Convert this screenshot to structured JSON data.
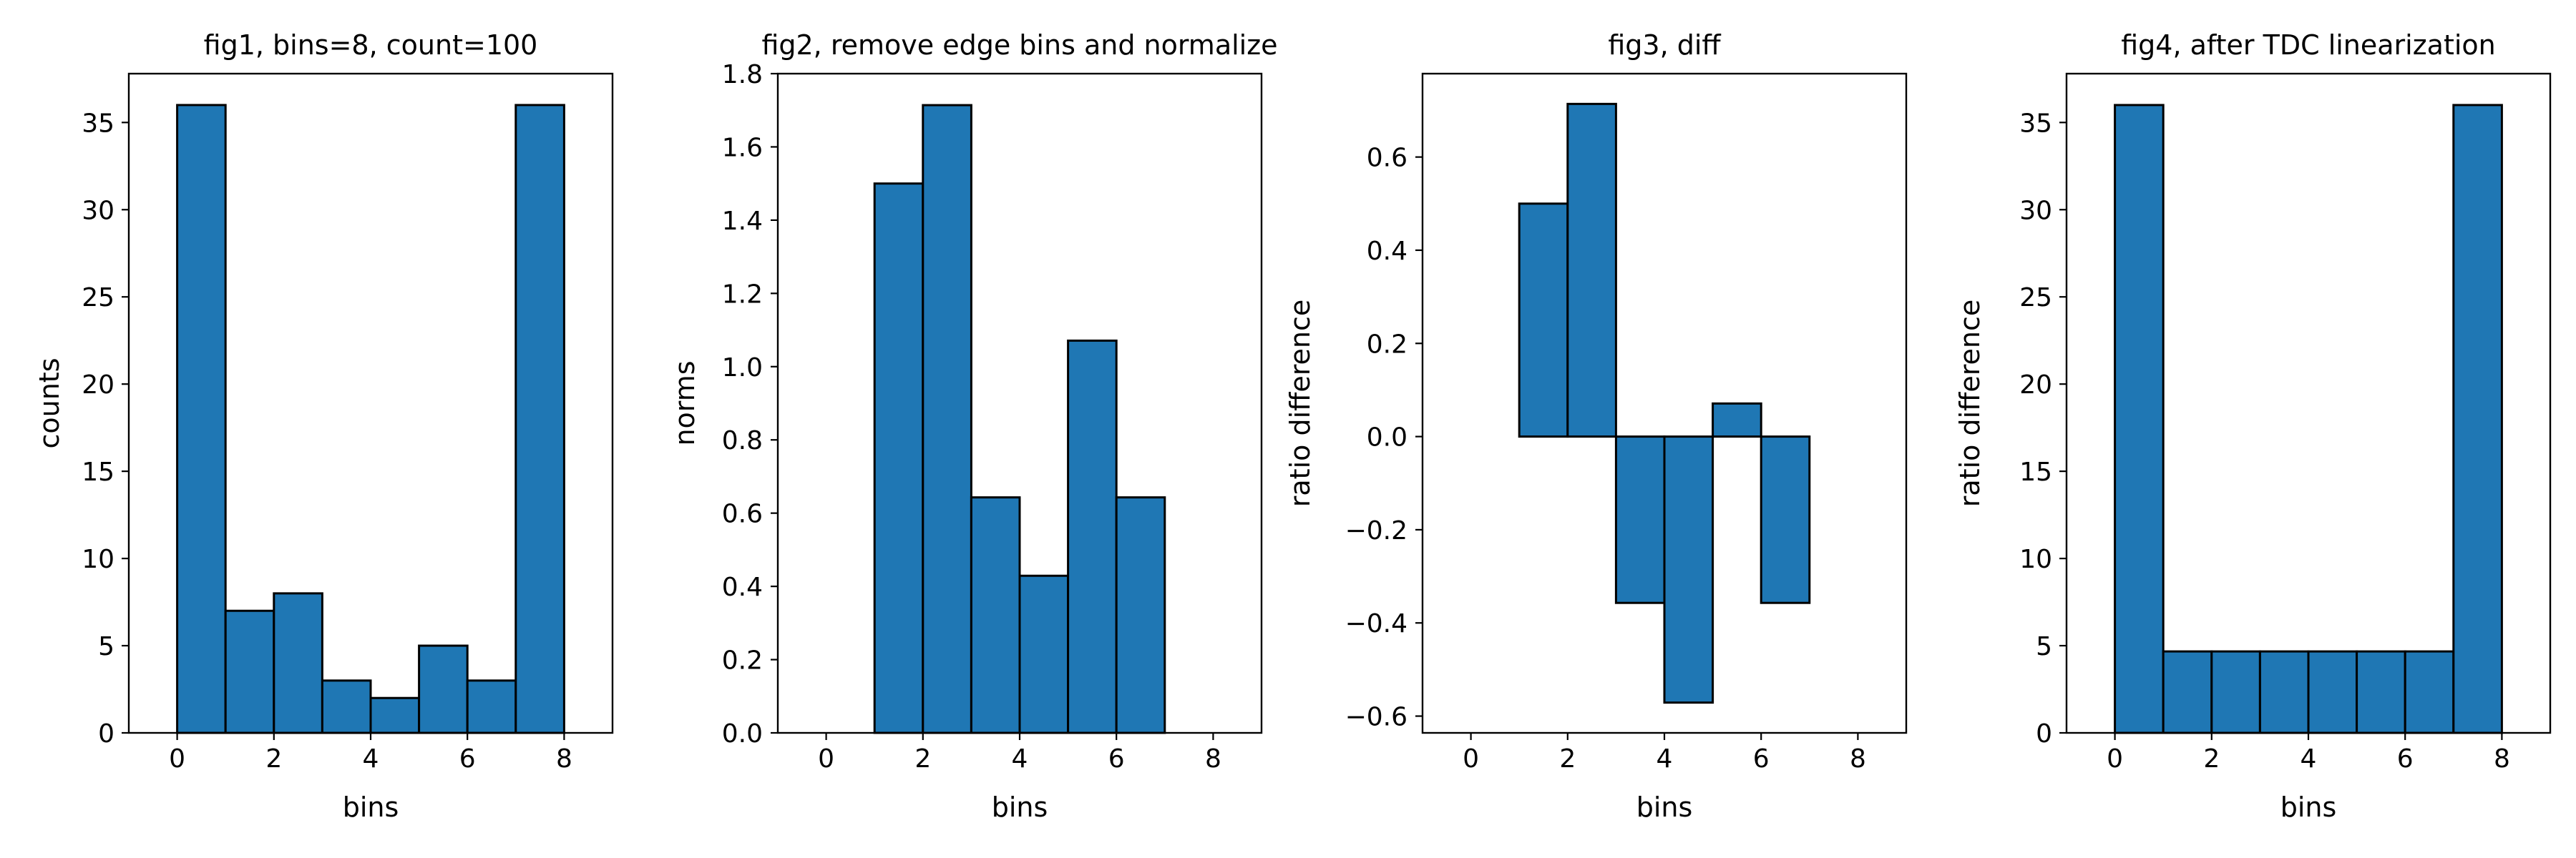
{
  "chart_data": [
    {
      "type": "bar",
      "title": "fig1, bins=8, count=100",
      "xlabel": "bins",
      "ylabel": "counts",
      "xlim": [
        -1,
        9
      ],
      "ylim": [
        0,
        37.8
      ],
      "xticks": [
        0,
        2,
        4,
        6,
        8
      ],
      "yticks": [
        0,
        5,
        10,
        15,
        20,
        25,
        30,
        35
      ],
      "bins": [
        {
          "x0": 0,
          "x1": 1,
          "value": 36
        },
        {
          "x0": 1,
          "x1": 2,
          "value": 7
        },
        {
          "x0": 2,
          "x1": 3,
          "value": 8
        },
        {
          "x0": 3,
          "x1": 4,
          "value": 3
        },
        {
          "x0": 4,
          "x1": 5,
          "value": 2
        },
        {
          "x0": 5,
          "x1": 6,
          "value": 5
        },
        {
          "x0": 6,
          "x1": 7,
          "value": 3
        },
        {
          "x0": 7,
          "x1": 8,
          "value": 36
        }
      ],
      "color": "#1f77b4",
      "edgecolor": "#000000",
      "grid": false
    },
    {
      "type": "bar",
      "title": "fig2, remove edge bins and normalize",
      "xlabel": "bins",
      "ylabel": "norms",
      "xlim": [
        -1,
        9
      ],
      "ylim": [
        0,
        1.8
      ],
      "xticks": [
        0,
        2,
        4,
        6,
        8
      ],
      "yticks": [
        "0.0",
        "0.2",
        "0.4",
        "0.6",
        "0.8",
        "1.0",
        "1.2",
        "1.4",
        "1.6",
        "1.8"
      ],
      "bins": [
        {
          "x0": 1,
          "x1": 2,
          "value": 1.5
        },
        {
          "x0": 2,
          "x1": 3,
          "value": 1.714
        },
        {
          "x0": 3,
          "x1": 4,
          "value": 0.643
        },
        {
          "x0": 4,
          "x1": 5,
          "value": 0.429
        },
        {
          "x0": 5,
          "x1": 6,
          "value": 1.071
        },
        {
          "x0": 6,
          "x1": 7,
          "value": 0.643
        }
      ],
      "color": "#1f77b4",
      "edgecolor": "#000000",
      "grid": false
    },
    {
      "type": "bar",
      "title": "fig3, diff",
      "xlabel": "bins",
      "ylabel": "ratio difference",
      "xlim": [
        -1,
        9
      ],
      "ylim": [
        -0.636,
        0.779
      ],
      "xticks": [
        0,
        2,
        4,
        6,
        8
      ],
      "yticks": [
        "−0.6",
        "−0.4",
        "−0.2",
        "0.0",
        "0.2",
        "0.4",
        "0.6"
      ],
      "bins": [
        {
          "x0": 1,
          "x1": 2,
          "value": 0.5
        },
        {
          "x0": 2,
          "x1": 3,
          "value": 0.714
        },
        {
          "x0": 3,
          "x1": 4,
          "value": -0.357
        },
        {
          "x0": 4,
          "x1": 5,
          "value": -0.571
        },
        {
          "x0": 5,
          "x1": 6,
          "value": 0.071
        },
        {
          "x0": 6,
          "x1": 7,
          "value": -0.357
        }
      ],
      "color": "#1f77b4",
      "edgecolor": "#000000",
      "grid": false
    },
    {
      "type": "bar",
      "title": "fig4, after TDC linearization",
      "xlabel": "bins",
      "ylabel": "ratio difference",
      "xlim": [
        -1,
        9
      ],
      "ylim": [
        0,
        37.8
      ],
      "xticks": [
        0,
        2,
        4,
        6,
        8
      ],
      "yticks": [
        0,
        5,
        10,
        15,
        20,
        25,
        30,
        35
      ],
      "bins": [
        {
          "x0": 0,
          "x1": 1,
          "value": 36
        },
        {
          "x0": 1,
          "x1": 2,
          "value": 4.67
        },
        {
          "x0": 2,
          "x1": 3,
          "value": 4.67
        },
        {
          "x0": 3,
          "x1": 4,
          "value": 4.67
        },
        {
          "x0": 4,
          "x1": 5,
          "value": 4.67
        },
        {
          "x0": 5,
          "x1": 6,
          "value": 4.67
        },
        {
          "x0": 6,
          "x1": 7,
          "value": 4.67
        },
        {
          "x0": 7,
          "x1": 8,
          "value": 36
        }
      ],
      "color": "#1f77b4",
      "edgecolor": "#000000",
      "grid": false
    }
  ]
}
